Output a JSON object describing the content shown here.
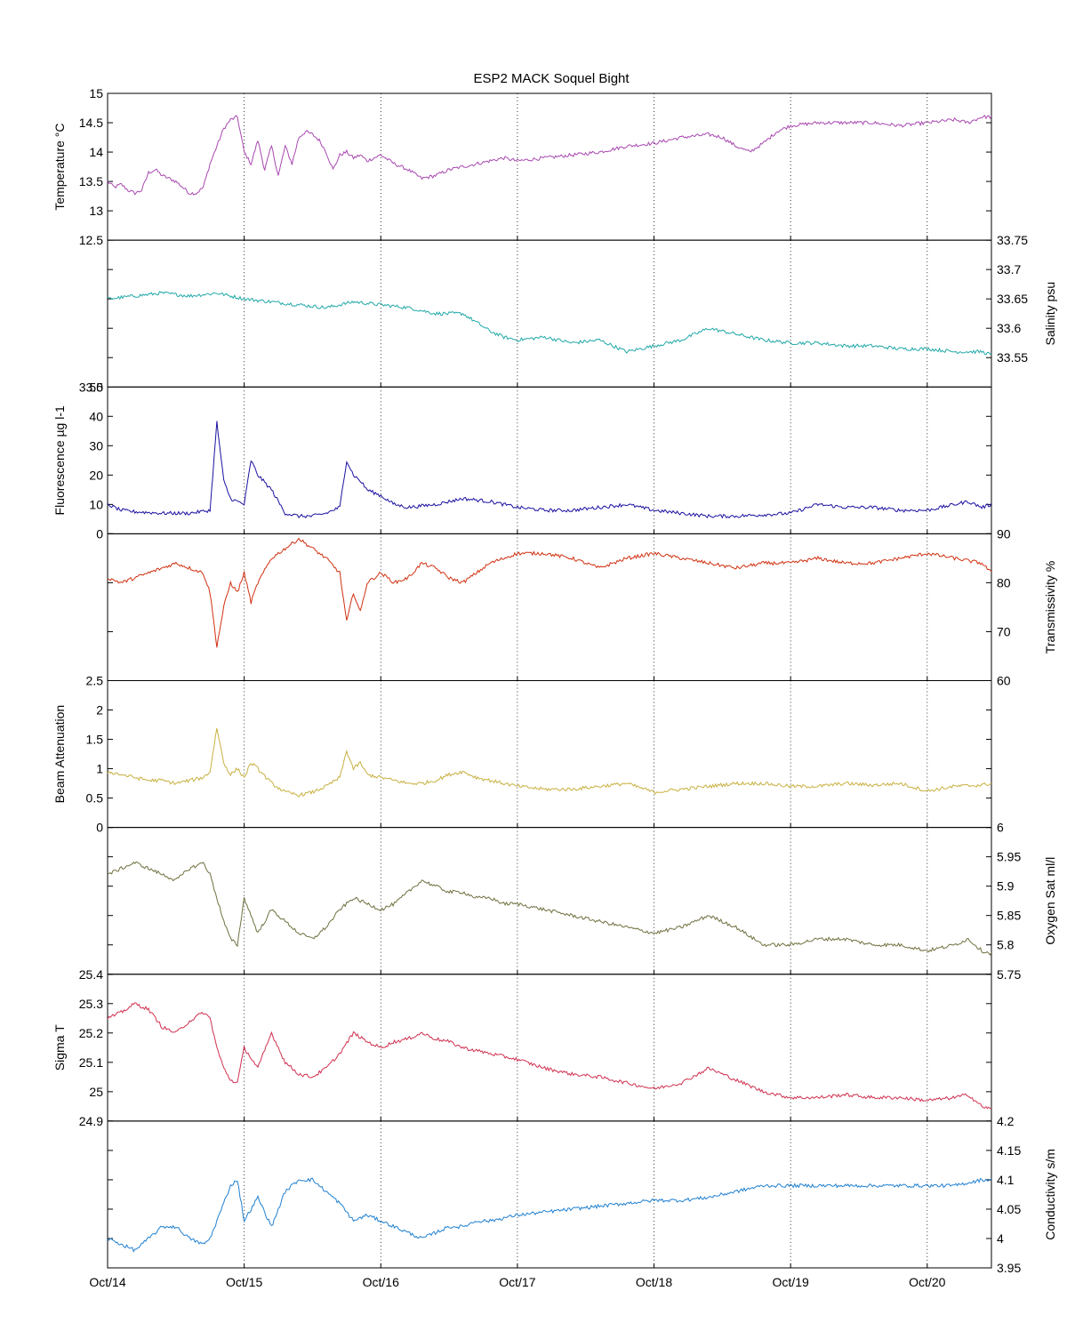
{
  "chart_data": {
    "type": "line",
    "title": "ESP2 MACK  Soquel Bight",
    "x_tick_labels": [
      "Oct/14",
      "Oct/15",
      "Oct/16",
      "Oct/17",
      "Oct/18",
      "Oct/19",
      "Oct/20"
    ],
    "x_range_days": [
      0,
      6.47
    ],
    "grid": "vertical dotted lines at each day",
    "panels": [
      {
        "ylabel": "Temperature °C",
        "axis_side": "left",
        "color": "#a848b0",
        "ylim": [
          12.5,
          15
        ],
        "ticks": [
          13,
          13.5,
          14,
          14.5,
          15
        ],
        "tick_labels": [
          "13",
          "13.5",
          "14",
          "14.5",
          "15"
        ],
        "bottom_label": "12.5",
        "x": [
          0,
          0.05,
          0.1,
          0.15,
          0.2,
          0.25,
          0.3,
          0.35,
          0.4,
          0.45,
          0.5,
          0.55,
          0.6,
          0.65,
          0.7,
          0.75,
          0.8,
          0.85,
          0.9,
          0.95,
          1.0,
          1.05,
          1.1,
          1.15,
          1.2,
          1.25,
          1.3,
          1.35,
          1.4,
          1.45,
          1.5,
          1.55,
          1.6,
          1.65,
          1.7,
          1.75,
          1.8,
          1.85,
          1.9,
          1.95,
          2.0,
          2.1,
          2.2,
          2.3,
          2.4,
          2.5,
          2.6,
          2.7,
          2.8,
          2.9,
          3.0,
          3.2,
          3.4,
          3.6,
          3.8,
          4.0,
          4.2,
          4.4,
          4.5,
          4.6,
          4.7,
          4.8,
          4.9,
          5.0,
          5.2,
          5.4,
          5.6,
          5.8,
          6.0,
          6.2,
          6.3,
          6.4,
          6.47
        ],
        "values": [
          13.5,
          13.4,
          13.45,
          13.35,
          13.3,
          13.35,
          13.65,
          13.7,
          13.6,
          13.55,
          13.5,
          13.4,
          13.3,
          13.3,
          13.4,
          13.8,
          14.1,
          14.4,
          14.55,
          14.6,
          14.0,
          13.8,
          14.2,
          13.7,
          14.1,
          13.6,
          14.1,
          13.8,
          14.25,
          14.35,
          14.3,
          14.2,
          14.0,
          13.7,
          13.95,
          14.0,
          13.9,
          13.95,
          13.85,
          13.9,
          13.95,
          13.8,
          13.7,
          13.55,
          13.6,
          13.7,
          13.75,
          13.8,
          13.85,
          13.9,
          13.85,
          13.9,
          13.95,
          14.0,
          14.1,
          14.15,
          14.25,
          14.3,
          14.25,
          14.1,
          14.0,
          14.15,
          14.35,
          14.45,
          14.5,
          14.5,
          14.5,
          14.45,
          14.5,
          14.55,
          14.5,
          14.6,
          14.6
        ]
      },
      {
        "ylabel": "Salinity psu",
        "axis_side": "right",
        "color": "#22a8a8",
        "ylim": [
          33.5,
          33.75
        ],
        "ticks": [
          33.55,
          33.6,
          33.65,
          33.7,
          33.75
        ],
        "tick_labels": [
          "33.55",
          "33.6",
          "33.65",
          "33.7",
          "33.75"
        ],
        "bottom_label": "33.5",
        "x": [
          0,
          0.2,
          0.4,
          0.6,
          0.8,
          1.0,
          1.2,
          1.4,
          1.6,
          1.8,
          2.0,
          2.2,
          2.4,
          2.6,
          2.7,
          2.8,
          2.9,
          3.0,
          3.2,
          3.4,
          3.6,
          3.8,
          4.0,
          4.2,
          4.4,
          4.6,
          4.8,
          5.0,
          5.2,
          5.4,
          5.6,
          5.8,
          6.0,
          6.2,
          6.4,
          6.47
        ],
        "values": [
          33.65,
          33.655,
          33.66,
          33.655,
          33.66,
          33.65,
          33.645,
          33.64,
          33.635,
          33.645,
          33.64,
          33.635,
          33.625,
          33.625,
          33.61,
          33.595,
          33.585,
          33.58,
          33.585,
          33.575,
          33.58,
          33.56,
          33.57,
          33.58,
          33.6,
          33.59,
          33.58,
          33.575,
          33.575,
          33.57,
          33.57,
          33.565,
          33.565,
          33.56,
          33.56,
          33.555
        ]
      },
      {
        "ylabel": "Fluorescence µg l-1",
        "axis_side": "left",
        "color": "#1a10a0",
        "ylim": [
          0,
          50
        ],
        "ticks": [
          0,
          10,
          20,
          30,
          40
        ],
        "tick_labels": [
          "0",
          "10",
          "20",
          "30",
          "40"
        ],
        "top_label": "50",
        "x": [
          0,
          0.1,
          0.2,
          0.4,
          0.6,
          0.75,
          0.8,
          0.85,
          0.9,
          1.0,
          1.05,
          1.1,
          1.2,
          1.3,
          1.4,
          1.5,
          1.6,
          1.7,
          1.75,
          1.8,
          1.85,
          1.9,
          2.0,
          2.1,
          2.2,
          2.4,
          2.6,
          2.8,
          3.0,
          3.2,
          3.4,
          3.6,
          3.8,
          4.0,
          4.2,
          4.4,
          4.6,
          4.8,
          5.0,
          5.2,
          5.4,
          5.6,
          5.8,
          6.0,
          6.2,
          6.3,
          6.4,
          6.47
        ],
        "values": [
          10,
          8,
          7.5,
          7,
          7,
          8,
          38,
          18,
          12,
          10,
          25,
          20,
          15,
          7,
          6,
          6,
          7,
          9,
          25,
          20,
          18,
          15,
          13,
          10,
          9,
          10,
          12,
          11,
          9,
          8,
          8,
          9,
          10,
          8,
          7,
          6,
          6,
          6.5,
          7,
          10,
          9,
          9,
          8,
          8,
          10,
          11,
          9,
          10
        ]
      },
      {
        "ylabel": "Transmissivity %",
        "axis_side": "right",
        "color": "#d03010",
        "ylim": [
          60,
          90
        ],
        "ticks": [
          60,
          70,
          80,
          90
        ],
        "tick_labels": [
          "60",
          "70",
          "80",
          "90"
        ],
        "x": [
          0,
          0.1,
          0.2,
          0.3,
          0.4,
          0.5,
          0.6,
          0.7,
          0.75,
          0.8,
          0.85,
          0.9,
          0.95,
          1.0,
          1.05,
          1.1,
          1.2,
          1.3,
          1.4,
          1.5,
          1.6,
          1.7,
          1.75,
          1.8,
          1.85,
          1.9,
          2.0,
          2.1,
          2.2,
          2.3,
          2.4,
          2.5,
          2.6,
          2.7,
          2.8,
          2.9,
          3.0,
          3.2,
          3.4,
          3.6,
          3.8,
          4.0,
          4.2,
          4.4,
          4.6,
          4.8,
          5.0,
          5.2,
          5.4,
          5.6,
          5.8,
          6.0,
          6.2,
          6.4,
          6.47
        ],
        "values": [
          81,
          80,
          81,
          82,
          83,
          84,
          83,
          82,
          78,
          67,
          75,
          80,
          78,
          82,
          76,
          80,
          85,
          87,
          89,
          87,
          85,
          82,
          72,
          78,
          74,
          80,
          82,
          80,
          81,
          84,
          83,
          81,
          80,
          82,
          84,
          85,
          86,
          86,
          85,
          83,
          85,
          86,
          85,
          84,
          83,
          84,
          84,
          85,
          84,
          84,
          85,
          86,
          85,
          84,
          82
        ]
      },
      {
        "ylabel": "Beam Attenuation",
        "axis_side": "left",
        "color": "#c8b040",
        "ylim": [
          0,
          2.5
        ],
        "ticks": [
          0,
          0.5,
          1,
          1.5,
          2
        ],
        "tick_labels": [
          "0",
          "0.5",
          "1",
          "1.5",
          "2"
        ],
        "top_label": "2.5",
        "x": [
          0,
          0.1,
          0.2,
          0.3,
          0.4,
          0.5,
          0.6,
          0.7,
          0.75,
          0.8,
          0.85,
          0.9,
          0.95,
          1.0,
          1.05,
          1.1,
          1.2,
          1.3,
          1.4,
          1.5,
          1.6,
          1.7,
          1.75,
          1.8,
          1.85,
          1.9,
          2.0,
          2.1,
          2.2,
          2.3,
          2.4,
          2.5,
          2.6,
          2.7,
          2.8,
          2.9,
          3.0,
          3.2,
          3.4,
          3.6,
          3.8,
          4.0,
          4.2,
          4.4,
          4.6,
          4.8,
          5.0,
          5.2,
          5.4,
          5.6,
          5.8,
          6.0,
          6.2,
          6.4,
          6.47
        ],
        "values": [
          0.95,
          0.9,
          0.85,
          0.8,
          0.8,
          0.75,
          0.8,
          0.85,
          0.95,
          1.7,
          1.1,
          0.9,
          1.0,
          0.85,
          1.1,
          1.0,
          0.75,
          0.6,
          0.55,
          0.6,
          0.7,
          0.85,
          1.3,
          1.0,
          1.1,
          0.9,
          0.85,
          0.8,
          0.75,
          0.75,
          0.8,
          0.9,
          0.95,
          0.85,
          0.8,
          0.75,
          0.7,
          0.65,
          0.65,
          0.7,
          0.75,
          0.6,
          0.65,
          0.7,
          0.75,
          0.75,
          0.7,
          0.7,
          0.75,
          0.72,
          0.75,
          0.62,
          0.7,
          0.72,
          0.75
        ]
      },
      {
        "ylabel": "Oxygen Sat ml/l",
        "axis_side": "right",
        "color": "#707040",
        "ylim": [
          5.75,
          6
        ],
        "ticks": [
          5.75,
          5.8,
          5.85,
          5.9,
          5.95,
          6
        ],
        "tick_labels": [
          "5.75",
          "5.8",
          "5.85",
          "5.9",
          "5.95",
          "6"
        ],
        "x": [
          0,
          0.1,
          0.2,
          0.3,
          0.4,
          0.5,
          0.6,
          0.7,
          0.75,
          0.8,
          0.85,
          0.9,
          0.95,
          1.0,
          1.1,
          1.2,
          1.3,
          1.4,
          1.5,
          1.6,
          1.7,
          1.8,
          1.9,
          2.0,
          2.1,
          2.2,
          2.3,
          2.4,
          2.5,
          2.6,
          2.7,
          2.8,
          2.9,
          3.0,
          3.2,
          3.4,
          3.6,
          3.8,
          4.0,
          4.2,
          4.4,
          4.6,
          4.8,
          5.0,
          5.2,
          5.4,
          5.6,
          5.8,
          6.0,
          6.2,
          6.3,
          6.4,
          6.47
        ],
        "values": [
          5.92,
          5.93,
          5.94,
          5.93,
          5.92,
          5.91,
          5.93,
          5.94,
          5.92,
          5.88,
          5.84,
          5.81,
          5.8,
          5.88,
          5.82,
          5.86,
          5.84,
          5.82,
          5.81,
          5.83,
          5.86,
          5.88,
          5.87,
          5.86,
          5.87,
          5.89,
          5.91,
          5.9,
          5.89,
          5.89,
          5.88,
          5.88,
          5.87,
          5.87,
          5.86,
          5.85,
          5.84,
          5.83,
          5.82,
          5.83,
          5.85,
          5.83,
          5.8,
          5.8,
          5.81,
          5.81,
          5.8,
          5.8,
          5.79,
          5.8,
          5.81,
          5.79,
          5.785
        ]
      },
      {
        "ylabel": "Sigma T",
        "axis_side": "left",
        "color": "#d03050",
        "ylim": [
          24.9,
          25.4
        ],
        "ticks": [
          24.9,
          25,
          25.1,
          25.2,
          25.3,
          25.4
        ],
        "tick_labels": [
          "24.9",
          "25",
          "25.1",
          "25.2",
          "25.3",
          "25.4"
        ],
        "x": [
          0,
          0.1,
          0.2,
          0.3,
          0.4,
          0.5,
          0.6,
          0.7,
          0.75,
          0.8,
          0.85,
          0.9,
          0.95,
          1.0,
          1.1,
          1.2,
          1.3,
          1.4,
          1.5,
          1.6,
          1.7,
          1.8,
          1.9,
          2.0,
          2.1,
          2.2,
          2.3,
          2.4,
          2.5,
          2.6,
          2.7,
          2.8,
          2.9,
          3.0,
          3.2,
          3.4,
          3.6,
          3.8,
          4.0,
          4.2,
          4.4,
          4.6,
          4.8,
          5.0,
          5.2,
          5.4,
          5.6,
          5.8,
          6.0,
          6.2,
          6.3,
          6.4,
          6.47
        ],
        "values": [
          25.25,
          25.27,
          25.3,
          25.28,
          25.22,
          25.2,
          25.24,
          25.27,
          25.25,
          25.15,
          25.08,
          25.04,
          25.03,
          25.15,
          25.08,
          25.2,
          25.1,
          25.06,
          25.05,
          25.08,
          25.13,
          25.2,
          25.17,
          25.15,
          25.17,
          25.18,
          25.2,
          25.18,
          25.17,
          25.15,
          25.14,
          25.13,
          25.12,
          25.11,
          25.08,
          25.06,
          25.05,
          25.03,
          25.01,
          25.03,
          25.08,
          25.04,
          25.0,
          24.98,
          24.98,
          24.99,
          24.98,
          24.98,
          24.97,
          24.98,
          24.99,
          24.95,
          24.94
        ]
      },
      {
        "ylabel": "Conductivity s/m",
        "axis_side": "right",
        "color": "#2080d0",
        "ylim": [
          3.95,
          4.2
        ],
        "ticks": [
          3.95,
          4.0,
          4.05,
          4.1,
          4.15,
          4.2
        ],
        "tick_labels": [
          "3.95",
          "4",
          "4.05",
          "4.1",
          "4.15",
          "4.2"
        ],
        "x": [
          0,
          0.1,
          0.2,
          0.3,
          0.4,
          0.5,
          0.6,
          0.7,
          0.75,
          0.8,
          0.85,
          0.9,
          0.95,
          1.0,
          1.1,
          1.2,
          1.3,
          1.4,
          1.5,
          1.6,
          1.7,
          1.8,
          1.9,
          2.0,
          2.1,
          2.2,
          2.3,
          2.4,
          2.5,
          2.6,
          2.7,
          2.8,
          2.9,
          3.0,
          3.2,
          3.4,
          3.6,
          3.8,
          4.0,
          4.2,
          4.4,
          4.6,
          4.8,
          5.0,
          5.2,
          5.4,
          5.6,
          5.8,
          6.0,
          6.2,
          6.3,
          6.4,
          6.47
        ],
        "values": [
          4.0,
          3.99,
          3.98,
          4.0,
          4.02,
          4.02,
          4.0,
          3.99,
          4.0,
          4.03,
          4.06,
          4.09,
          4.1,
          4.03,
          4.07,
          4.02,
          4.08,
          4.1,
          4.1,
          4.08,
          4.06,
          4.03,
          4.04,
          4.03,
          4.02,
          4.01,
          4.0,
          4.01,
          4.02,
          4.02,
          4.03,
          4.03,
          4.035,
          4.04,
          4.045,
          4.05,
          4.055,
          4.06,
          4.065,
          4.065,
          4.07,
          4.08,
          4.09,
          4.09,
          4.09,
          4.09,
          4.09,
          4.09,
          4.09,
          4.09,
          4.095,
          4.1,
          4.1
        ]
      }
    ]
  }
}
